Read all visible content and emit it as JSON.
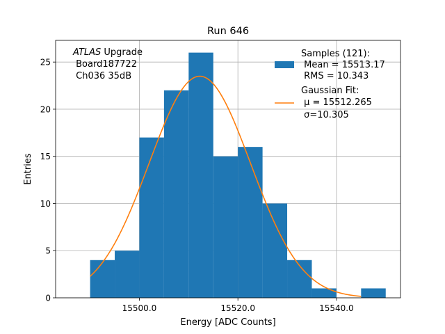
{
  "chart_data": {
    "type": "bar",
    "title": "Run 646",
    "xlabel": "Energy [ADC Counts]",
    "ylabel": "Entries",
    "xlim": [
      15483.0,
      15553.0
    ],
    "ylim": [
      0,
      27.3
    ],
    "grid": true,
    "x_ticks": [
      {
        "value": 15500,
        "label": "15500.0"
      },
      {
        "value": 15520,
        "label": "15520.0"
      },
      {
        "value": 15540,
        "label": "15540.0"
      }
    ],
    "y_ticks": [
      {
        "value": 0,
        "label": "0"
      },
      {
        "value": 5,
        "label": "5"
      },
      {
        "value": 10,
        "label": "10"
      },
      {
        "value": 15,
        "label": "15"
      },
      {
        "value": 20,
        "label": "20"
      },
      {
        "value": 25,
        "label": "25"
      }
    ],
    "bins": [
      {
        "x0": 15490,
        "x1": 15495,
        "count": 4
      },
      {
        "x0": 15495,
        "x1": 15500,
        "count": 5
      },
      {
        "x0": 15500,
        "x1": 15505,
        "count": 17
      },
      {
        "x0": 15505,
        "x1": 15510,
        "count": 22
      },
      {
        "x0": 15510,
        "x1": 15515,
        "count": 26
      },
      {
        "x0": 15515,
        "x1": 15520,
        "count": 15
      },
      {
        "x0": 15520,
        "x1": 15525,
        "count": 16
      },
      {
        "x0": 15525,
        "x1": 15530,
        "count": 10
      },
      {
        "x0": 15530,
        "x1": 15535,
        "count": 4
      },
      {
        "x0": 15535,
        "x1": 15540,
        "count": 1
      },
      {
        "x0": 15540,
        "x1": 15545,
        "count": 0
      },
      {
        "x0": 15545,
        "x1": 15550,
        "count": 1
      }
    ],
    "fit": {
      "mu": 15512.265,
      "sigma": 10.305,
      "x_range": [
        15490,
        15545
      ],
      "peak_entries": 23.5
    },
    "colors": {
      "histogram": "#1f77b4",
      "fit": "#ff7f0e",
      "grid": "#b0b0b0"
    },
    "annotation": {
      "atlas_word": "ATLAS",
      "upgrade_word": " Upgrade",
      "line2": " Board187722",
      "line3": " Ch036 35dB"
    },
    "legend": {
      "position": "top-right",
      "samples_lines": [
        "Samples (121):",
        " Mean = 15513.17",
        " RMS = 10.343"
      ],
      "fit_lines": [
        "Gaussian Fit:",
        " μ = 15512.265",
        " σ=10.305"
      ]
    }
  }
}
